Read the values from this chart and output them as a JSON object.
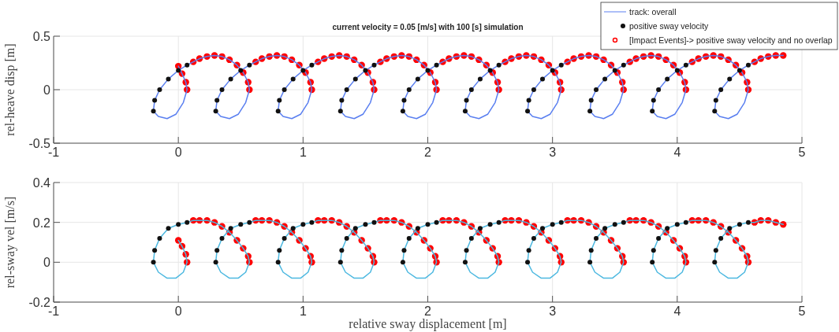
{
  "chart_data": [
    {
      "type": "line",
      "title": "current velocity = 0.05 [m/s] with 100 [s] simulation",
      "ylabel": "rel-heave disp [m]",
      "xlim": [
        -1,
        5
      ],
      "xticks": [
        -1,
        0,
        1,
        2,
        3,
        4,
        5
      ],
      "ylim": [
        -0.5,
        0.5
      ],
      "yticks": [
        -0.5,
        0,
        0.5
      ],
      "grid": true,
      "legend": "top right",
      "series": [
        {
          "name": "track: overall",
          "color": "#5a7ff0",
          "line_style": "solid",
          "marker": "none",
          "x": [
            0,
            0.03,
            0.06,
            0.07,
            0.04,
            -0.02,
            -0.09,
            -0.16,
            -0.2,
            -0.19,
            -0.15,
            -0.08,
            0,
            0.07,
            0.12,
            0.17,
            0.23,
            0.29,
            0.35,
            0.41,
            0.47,
            0.52,
            0.56,
            0.57,
            0.54,
            0.48,
            0.41,
            0.34,
            0.3,
            0.31,
            0.35,
            0.42,
            0.5,
            0.57,
            0.62,
            0.67,
            0.73,
            0.79,
            0.85,
            0.91,
            0.97,
            1.02,
            1.06,
            1.07,
            1.04,
            0.98,
            0.91,
            0.84,
            0.8,
            0.81,
            0.85,
            0.92,
            1,
            1.07,
            1.12,
            1.17,
            1.23,
            1.29,
            1.35,
            1.41,
            1.47,
            1.52,
            1.56,
            1.57,
            1.54,
            1.48,
            1.41,
            1.34,
            1.3,
            1.31,
            1.35,
            1.42,
            1.5,
            1.57,
            1.62,
            1.67,
            1.73,
            1.79,
            1.85,
            1.91,
            1.97,
            2.02,
            2.06,
            2.07,
            2.04,
            1.98,
            1.91,
            1.84,
            1.8,
            1.81,
            1.85,
            1.92,
            2,
            2.07,
            2.12,
            2.17,
            2.23,
            2.29,
            2.35,
            2.41,
            2.47,
            2.52,
            2.56,
            2.57,
            2.54,
            2.48,
            2.41,
            2.34,
            2.3,
            2.31,
            2.35,
            2.42,
            2.5,
            2.57,
            2.62,
            2.67,
            2.73,
            2.79,
            2.85,
            2.91,
            2.97,
            3.02,
            3.06,
            3.07,
            3.04,
            2.98,
            2.91,
            2.84,
            2.8,
            2.81,
            2.85,
            2.92,
            3,
            3.07,
            3.12,
            3.17,
            3.23,
            3.29,
            3.35,
            3.41,
            3.47,
            3.52,
            3.56,
            3.57,
            3.54,
            3.48,
            3.41,
            3.34,
            3.3,
            3.31,
            3.35,
            3.42,
            3.5,
            3.57,
            3.62,
            3.67,
            3.73,
            3.79,
            3.85,
            3.91,
            3.97,
            4.02,
            4.06,
            4.07,
            4.04,
            3.98,
            3.91,
            3.84,
            3.8,
            3.81,
            3.85,
            3.92,
            4,
            4.07,
            4.12,
            4.17,
            4.23,
            4.29,
            4.35,
            4.41,
            4.47,
            4.52,
            4.56,
            4.57,
            4.54,
            4.48,
            4.41,
            4.34,
            4.3,
            4.31,
            4.35,
            4.42,
            4.5,
            4.57,
            4.62,
            4.67,
            4.73,
            4.79,
            4.85
          ],
          "values": [
            0.22,
            0.15,
            0.07,
            0,
            -0.12,
            -0.23,
            -0.27,
            -0.25,
            -0.2,
            -0.1,
            0,
            0.1,
            0.18,
            0.23,
            0.26,
            0.29,
            0.31,
            0.32,
            0.31,
            0.28,
            0.23,
            0.16,
            0.07,
            0,
            -0.12,
            -0.23,
            -0.27,
            -0.25,
            -0.2,
            -0.1,
            0,
            0.1,
            0.18,
            0.23,
            0.26,
            0.29,
            0.31,
            0.32,
            0.31,
            0.28,
            0.23,
            0.16,
            0.07,
            0,
            -0.12,
            -0.23,
            -0.27,
            -0.25,
            -0.2,
            -0.1,
            0,
            0.1,
            0.18,
            0.23,
            0.26,
            0.29,
            0.31,
            0.32,
            0.31,
            0.28,
            0.23,
            0.16,
            0.07,
            0,
            -0.12,
            -0.23,
            -0.27,
            -0.25,
            -0.2,
            -0.1,
            0,
            0.1,
            0.18,
            0.23,
            0.26,
            0.29,
            0.31,
            0.32,
            0.31,
            0.28,
            0.23,
            0.16,
            0.07,
            0,
            -0.12,
            -0.23,
            -0.27,
            -0.25,
            -0.2,
            -0.1,
            0,
            0.1,
            0.18,
            0.23,
            0.26,
            0.29,
            0.31,
            0.32,
            0.31,
            0.28,
            0.23,
            0.16,
            0.07,
            0,
            -0.12,
            -0.23,
            -0.27,
            -0.25,
            -0.2,
            -0.1,
            0,
            0.1,
            0.18,
            0.23,
            0.26,
            0.29,
            0.31,
            0.32,
            0.31,
            0.28,
            0.23,
            0.16,
            0.07,
            0,
            -0.12,
            -0.23,
            -0.27,
            -0.25,
            -0.2,
            -0.1,
            0,
            0.1,
            0.18,
            0.23,
            0.26,
            0.29,
            0.31,
            0.32,
            0.31,
            0.28,
            0.23,
            0.16,
            0.07,
            0,
            -0.12,
            -0.23,
            -0.27,
            -0.25,
            -0.2,
            -0.1,
            0,
            0.1,
            0.18,
            0.23,
            0.26,
            0.29,
            0.31,
            0.32,
            0.31,
            0.28,
            0.23,
            0.16,
            0.07,
            0,
            -0.12,
            -0.23,
            -0.27,
            -0.25,
            -0.2,
            -0.1,
            0,
            0.1,
            0.18,
            0.23,
            0.26,
            0.29,
            0.31,
            0.32,
            0.31,
            0.28,
            0.23,
            0.16,
            0.07,
            0,
            -0.12,
            -0.23,
            -0.27,
            -0.25,
            -0.2,
            -0.1,
            0,
            0.1,
            0.18,
            0.23,
            0.26,
            0.29,
            0.31,
            0.32,
            0.32
          ]
        },
        {
          "name": "positive sway velocity",
          "type": "scatter",
          "color": "#111111",
          "marker": "circle",
          "x": [
            -0.2,
            -0.19,
            -0.15,
            -0.08,
            0,
            0.07,
            0.3,
            0.31,
            0.35,
            0.42,
            0.5,
            0.57,
            0.8,
            0.81,
            0.85,
            0.92,
            1,
            1.07,
            1.3,
            1.31,
            1.35,
            1.42,
            1.5,
            1.57,
            1.8,
            1.81,
            1.85,
            1.92,
            2,
            2.07,
            2.3,
            2.31,
            2.35,
            2.42,
            2.5,
            2.57,
            2.8,
            2.81,
            2.85,
            2.92,
            3,
            3.07,
            3.3,
            3.31,
            3.35,
            3.42,
            3.5,
            3.57,
            3.8,
            3.81,
            3.85,
            3.92,
            4,
            4.07,
            4.3,
            4.31,
            4.35,
            4.42,
            4.5,
            4.57
          ],
          "values": [
            -0.2,
            -0.1,
            0,
            0.1,
            0.18,
            0.23,
            -0.2,
            -0.1,
            0,
            0.1,
            0.18,
            0.23,
            -0.2,
            -0.1,
            0,
            0.1,
            0.18,
            0.23,
            -0.2,
            -0.1,
            0,
            0.1,
            0.18,
            0.23,
            -0.2,
            -0.1,
            0,
            0.1,
            0.18,
            0.23,
            -0.2,
            -0.1,
            0,
            0.1,
            0.18,
            0.23,
            -0.2,
            -0.1,
            0,
            0.1,
            0.18,
            0.23,
            -0.2,
            -0.1,
            0,
            0.1,
            0.18,
            0.23,
            -0.2,
            -0.1,
            0,
            0.1,
            0.18,
            0.23,
            -0.2,
            -0.1,
            0,
            0.1,
            0.18,
            0.23
          ]
        },
        {
          "name": "[Impact Events]-> positive sway velocity and no overlap",
          "type": "scatter",
          "color": "#ff0000",
          "marker": "circle",
          "x": [
            0,
            0.03,
            0.06,
            0.07,
            0.12,
            0.17,
            0.23,
            0.29,
            0.35,
            0.41,
            0.47,
            0.52,
            0.56,
            0.57,
            0.62,
            0.67,
            0.73,
            0.79,
            0.85,
            0.91,
            0.97,
            1.02,
            1.06,
            1.07,
            1.12,
            1.17,
            1.23,
            1.29,
            1.35,
            1.41,
            1.47,
            1.52,
            1.56,
            1.57,
            1.62,
            1.67,
            1.73,
            1.79,
            1.85,
            1.91,
            1.97,
            2.02,
            2.06,
            2.07,
            2.12,
            2.17,
            2.23,
            2.29,
            2.35,
            2.41,
            2.47,
            2.52,
            2.56,
            2.57,
            2.62,
            2.67,
            2.73,
            2.79,
            2.85,
            2.91,
            2.97,
            3.02,
            3.06,
            3.07,
            3.12,
            3.17,
            3.23,
            3.29,
            3.35,
            3.41,
            3.47,
            3.52,
            3.56,
            3.57,
            3.62,
            3.67,
            3.73,
            3.79,
            3.85,
            3.91,
            3.97,
            4.02,
            4.06,
            4.07,
            4.12,
            4.17,
            4.23,
            4.29,
            4.35,
            4.41,
            4.47,
            4.52,
            4.56,
            4.57,
            4.62,
            4.67,
            4.73,
            4.79,
            4.85
          ],
          "values": [
            0.22,
            0.15,
            0.07,
            0,
            0.26,
            0.29,
            0.31,
            0.32,
            0.31,
            0.28,
            0.23,
            0.16,
            0.07,
            0,
            0.26,
            0.29,
            0.31,
            0.32,
            0.31,
            0.28,
            0.23,
            0.16,
            0.07,
            0,
            0.26,
            0.29,
            0.31,
            0.32,
            0.31,
            0.28,
            0.23,
            0.16,
            0.07,
            0,
            0.26,
            0.29,
            0.31,
            0.32,
            0.31,
            0.28,
            0.23,
            0.16,
            0.07,
            0,
            0.26,
            0.29,
            0.31,
            0.32,
            0.31,
            0.28,
            0.23,
            0.16,
            0.07,
            0,
            0.26,
            0.29,
            0.31,
            0.32,
            0.31,
            0.28,
            0.23,
            0.16,
            0.07,
            0,
            0.26,
            0.29,
            0.31,
            0.32,
            0.31,
            0.28,
            0.23,
            0.16,
            0.07,
            0,
            0.26,
            0.29,
            0.31,
            0.32,
            0.31,
            0.28,
            0.23,
            0.16,
            0.07,
            0,
            0.26,
            0.29,
            0.31,
            0.32,
            0.31,
            0.28,
            0.23,
            0.16,
            0.07,
            0,
            0.26,
            0.29,
            0.31,
            0.32,
            0.32
          ]
        }
      ]
    },
    {
      "type": "line",
      "xlabel": "relative sway displacement [m]",
      "ylabel": "rel-sway vel [m/s]",
      "xlim": [
        -1,
        5
      ],
      "xticks": [
        -1,
        0,
        1,
        2,
        3,
        4,
        5
      ],
      "ylim": [
        -0.2,
        0.4
      ],
      "yticks": [
        -0.2,
        0,
        0.2,
        0.4
      ],
      "grid": true,
      "series": [
        {
          "color": "#4cb8e0",
          "line_style": "solid",
          "marker": "none",
          "x": [
            0,
            0.03,
            0.06,
            0.07,
            0.04,
            -0.02,
            -0.09,
            -0.16,
            -0.2,
            -0.19,
            -0.15,
            -0.08,
            0,
            0.07,
            0.12,
            0.17,
            0.23,
            0.29,
            0.35,
            0.41,
            0.47,
            0.52,
            0.56,
            0.57,
            0.54,
            0.48,
            0.41,
            0.34,
            0.3,
            0.31,
            0.35,
            0.42,
            0.5,
            0.57,
            0.62,
            0.67,
            0.73,
            0.79,
            0.85,
            0.91,
            0.97,
            1.02,
            1.06,
            1.07,
            1.04,
            0.98,
            0.91,
            0.84,
            0.8,
            0.81,
            0.85,
            0.92,
            1,
            1.07,
            1.12,
            1.17,
            1.23,
            1.29,
            1.35,
            1.41,
            1.47,
            1.52,
            1.56,
            1.57,
            1.54,
            1.48,
            1.41,
            1.34,
            1.3,
            1.31,
            1.35,
            1.42,
            1.5,
            1.57,
            1.62,
            1.67,
            1.73,
            1.79,
            1.85,
            1.91,
            1.97,
            2.02,
            2.06,
            2.07,
            2.04,
            1.98,
            1.91,
            1.84,
            1.8,
            1.81,
            1.85,
            1.92,
            2,
            2.07,
            2.12,
            2.17,
            2.23,
            2.29,
            2.35,
            2.41,
            2.47,
            2.52,
            2.56,
            2.57,
            2.54,
            2.48,
            2.41,
            2.34,
            2.3,
            2.31,
            2.35,
            2.42,
            2.5,
            2.57,
            2.62,
            2.67,
            2.73,
            2.79,
            2.85,
            2.91,
            2.97,
            3.02,
            3.06,
            3.07,
            3.04,
            2.98,
            2.91,
            2.84,
            2.8,
            2.81,
            2.85,
            2.92,
            3,
            3.07,
            3.12,
            3.17,
            3.23,
            3.29,
            3.35,
            3.41,
            3.47,
            3.52,
            3.56,
            3.57,
            3.54,
            3.48,
            3.41,
            3.34,
            3.3,
            3.31,
            3.35,
            3.42,
            3.5,
            3.57,
            3.62,
            3.67,
            3.73,
            3.79,
            3.85,
            3.91,
            3.97,
            4.02,
            4.06,
            4.07,
            4.04,
            3.98,
            3.91,
            3.84,
            3.8,
            3.81,
            3.85,
            3.92,
            4,
            4.07,
            4.12,
            4.17,
            4.23,
            4.29,
            4.35,
            4.41,
            4.47,
            4.52,
            4.56,
            4.57,
            4.54,
            4.48,
            4.41,
            4.34,
            4.3,
            4.31,
            4.35,
            4.42,
            4.5,
            4.57,
            4.62,
            4.67,
            4.73,
            4.79,
            4.85
          ],
          "values": [
            0.11,
            0.08,
            0.04,
            0,
            -0.05,
            -0.08,
            -0.08,
            -0.05,
            0,
            0.06,
            0.12,
            0.17,
            0.19,
            0.2,
            0.21,
            0.21,
            0.21,
            0.2,
            0.18,
            0.15,
            0.11,
            0.07,
            0.03,
            0,
            -0.05,
            -0.08,
            -0.08,
            -0.05,
            0,
            0.06,
            0.12,
            0.17,
            0.19,
            0.2,
            0.21,
            0.21,
            0.21,
            0.2,
            0.18,
            0.15,
            0.11,
            0.07,
            0.03,
            0,
            -0.05,
            -0.08,
            -0.08,
            -0.05,
            0,
            0.06,
            0.12,
            0.17,
            0.19,
            0.2,
            0.21,
            0.21,
            0.21,
            0.2,
            0.18,
            0.15,
            0.11,
            0.07,
            0.03,
            0,
            -0.05,
            -0.08,
            -0.08,
            -0.05,
            0,
            0.06,
            0.12,
            0.17,
            0.19,
            0.2,
            0.21,
            0.21,
            0.21,
            0.2,
            0.18,
            0.15,
            0.11,
            0.07,
            0.03,
            0,
            -0.05,
            -0.08,
            -0.08,
            -0.05,
            0,
            0.06,
            0.12,
            0.17,
            0.19,
            0.2,
            0.21,
            0.21,
            0.21,
            0.2,
            0.18,
            0.15,
            0.11,
            0.07,
            0.03,
            0,
            -0.05,
            -0.08,
            -0.08,
            -0.05,
            0,
            0.06,
            0.12,
            0.17,
            0.19,
            0.2,
            0.21,
            0.21,
            0.21,
            0.2,
            0.18,
            0.15,
            0.11,
            0.07,
            0.03,
            0,
            -0.05,
            -0.08,
            -0.08,
            -0.05,
            0,
            0.06,
            0.12,
            0.17,
            0.19,
            0.2,
            0.21,
            0.21,
            0.21,
            0.2,
            0.18,
            0.15,
            0.11,
            0.07,
            0.03,
            0,
            -0.05,
            -0.08,
            -0.08,
            -0.05,
            0,
            0.06,
            0.12,
            0.17,
            0.19,
            0.2,
            0.21,
            0.21,
            0.21,
            0.2,
            0.18,
            0.15,
            0.11,
            0.07,
            0.03,
            0,
            -0.05,
            -0.08,
            -0.08,
            -0.05,
            0,
            0.06,
            0.12,
            0.17,
            0.19,
            0.2,
            0.21,
            0.21,
            0.21,
            0.2,
            0.18,
            0.15,
            0.11,
            0.07,
            0.03,
            0,
            -0.05,
            -0.08,
            -0.08,
            -0.05,
            0,
            0.06,
            0.12,
            0.17,
            0.19,
            0.2,
            0.2,
            0.21,
            0.21,
            0.2,
            0.19
          ]
        },
        {
          "type": "scatter",
          "color": "#111111",
          "marker": "circle",
          "x": [
            -0.2,
            -0.19,
            -0.15,
            -0.08,
            0,
            0.07,
            0.3,
            0.31,
            0.35,
            0.42,
            0.5,
            0.57,
            0.8,
            0.81,
            0.85,
            0.92,
            1,
            1.07,
            1.3,
            1.31,
            1.35,
            1.42,
            1.5,
            1.57,
            1.8,
            1.81,
            1.85,
            1.92,
            2,
            2.07,
            2.3,
            2.31,
            2.35,
            2.42,
            2.5,
            2.57,
            2.8,
            2.81,
            2.85,
            2.92,
            3,
            3.07,
            3.3,
            3.31,
            3.35,
            3.42,
            3.5,
            3.57,
            3.8,
            3.81,
            3.85,
            3.92,
            4,
            4.07,
            4.3,
            4.31,
            4.35,
            4.42,
            4.5,
            4.57
          ],
          "values": [
            0,
            0.06,
            0.12,
            0.17,
            0.19,
            0.2,
            0,
            0.06,
            0.12,
            0.17,
            0.19,
            0.2,
            0,
            0.06,
            0.12,
            0.17,
            0.19,
            0.2,
            0,
            0.06,
            0.12,
            0.17,
            0.19,
            0.2,
            0,
            0.06,
            0.12,
            0.17,
            0.19,
            0.2,
            0,
            0.06,
            0.12,
            0.17,
            0.19,
            0.2,
            0,
            0.06,
            0.12,
            0.17,
            0.19,
            0.2,
            0,
            0.06,
            0.12,
            0.17,
            0.19,
            0.2,
            0,
            0.06,
            0.12,
            0.17,
            0.19,
            0.2,
            0,
            0.06,
            0.12,
            0.17,
            0.19,
            0.2
          ]
        },
        {
          "type": "scatter",
          "color": "#ff0000",
          "marker": "circle",
          "x": [
            0,
            0.03,
            0.06,
            0.07,
            0.12,
            0.17,
            0.23,
            0.29,
            0.35,
            0.41,
            0.47,
            0.52,
            0.56,
            0.57,
            0.62,
            0.67,
            0.73,
            0.79,
            0.85,
            0.91,
            0.97,
            1.02,
            1.06,
            1.07,
            1.12,
            1.17,
            1.23,
            1.29,
            1.35,
            1.41,
            1.47,
            1.52,
            1.56,
            1.57,
            1.62,
            1.67,
            1.73,
            1.79,
            1.85,
            1.91,
            1.97,
            2.02,
            2.06,
            2.07,
            2.12,
            2.17,
            2.23,
            2.29,
            2.35,
            2.41,
            2.47,
            2.52,
            2.56,
            2.57,
            2.62,
            2.67,
            2.73,
            2.79,
            2.85,
            2.91,
            2.97,
            3.02,
            3.06,
            3.07,
            3.12,
            3.17,
            3.23,
            3.29,
            3.35,
            3.41,
            3.47,
            3.52,
            3.56,
            3.57,
            3.62,
            3.67,
            3.73,
            3.79,
            3.85,
            3.91,
            3.97,
            4.02,
            4.06,
            4.07,
            4.12,
            4.17,
            4.23,
            4.29,
            4.35,
            4.41,
            4.47,
            4.52,
            4.56,
            4.57,
            4.62,
            4.67,
            4.73,
            4.79,
            4.85
          ],
          "values": [
            0.11,
            0.08,
            0.04,
            0,
            0.21,
            0.21,
            0.21,
            0.2,
            0.18,
            0.15,
            0.11,
            0.07,
            0.03,
            0,
            0.21,
            0.21,
            0.21,
            0.2,
            0.18,
            0.15,
            0.11,
            0.07,
            0.03,
            0,
            0.21,
            0.21,
            0.21,
            0.2,
            0.18,
            0.15,
            0.11,
            0.07,
            0.03,
            0,
            0.21,
            0.21,
            0.21,
            0.2,
            0.18,
            0.15,
            0.11,
            0.07,
            0.03,
            0,
            0.21,
            0.21,
            0.21,
            0.2,
            0.18,
            0.15,
            0.11,
            0.07,
            0.03,
            0,
            0.21,
            0.21,
            0.21,
            0.2,
            0.18,
            0.15,
            0.11,
            0.07,
            0.03,
            0,
            0.21,
            0.21,
            0.21,
            0.2,
            0.18,
            0.15,
            0.11,
            0.07,
            0.03,
            0,
            0.21,
            0.21,
            0.21,
            0.2,
            0.18,
            0.15,
            0.11,
            0.07,
            0.03,
            0,
            0.21,
            0.21,
            0.21,
            0.2,
            0.18,
            0.15,
            0.11,
            0.07,
            0.03,
            0,
            0.2,
            0.21,
            0.21,
            0.2,
            0.19
          ]
        }
      ]
    }
  ]
}
